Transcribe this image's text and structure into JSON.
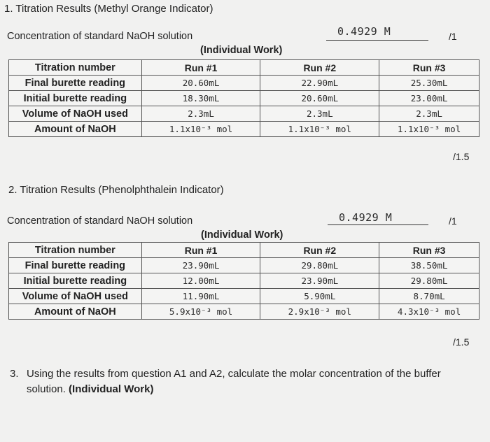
{
  "section1": {
    "title": "1.  Titration Results (Methyl Orange Indicator)",
    "conc_label": "Concentration of standard NaOH solution",
    "conc_value": "0.4929 M",
    "conc_score": "/1",
    "individual_work": "(Individual Work)",
    "headers": [
      "Titration number",
      "Run #1",
      "Run #2",
      "Run #3"
    ],
    "rows": [
      {
        "label": "Final burette reading",
        "values": [
          "20.60mL",
          "22.90mL",
          "25.30mL"
        ]
      },
      {
        "label": "Initial burette reading",
        "values": [
          "18.30mL",
          "20.60mL",
          "23.00mL"
        ]
      },
      {
        "label": "Volume of NaOH used",
        "values": [
          "2.3mL",
          "2.3mL",
          "2.3mL"
        ]
      },
      {
        "label": "Amount of NaOH",
        "values": [
          "1.1x10⁻³ mol",
          "1.1x10⁻³ mol",
          "1.1x10⁻³ mol"
        ]
      }
    ],
    "score": "/1.5"
  },
  "section2": {
    "title": "2.  Titration Results (Phenolphthalein Indicator)",
    "conc_label": "Concentration of standard NaOH solution",
    "conc_value": "0.4929 M",
    "conc_score": "/1",
    "individual_work": "(Individual Work)",
    "headers": [
      "Titration number",
      "Run #1",
      "Run #2",
      "Run #3"
    ],
    "rows": [
      {
        "label": "Final burette reading",
        "values": [
          "23.90mL",
          "29.80mL",
          "38.50mL"
        ]
      },
      {
        "label": "Initial burette reading",
        "values": [
          "12.00mL",
          "23.90mL",
          "29.80mL"
        ]
      },
      {
        "label": "Volume of NaOH used",
        "values": [
          "11.90mL",
          "5.90mL",
          "8.70mL"
        ]
      },
      {
        "label": "Amount of NaOH",
        "values": [
          "5.9x10⁻³ mol",
          "2.9x10⁻³ mol",
          "4.3x10⁻³ mol"
        ]
      }
    ],
    "score": "/1.5"
  },
  "section3": {
    "number": "3.",
    "question": "Using the results from question A1 and A2, calculate the molar concentration of the buffer solution.",
    "individual_work": "(Individual Work)"
  }
}
